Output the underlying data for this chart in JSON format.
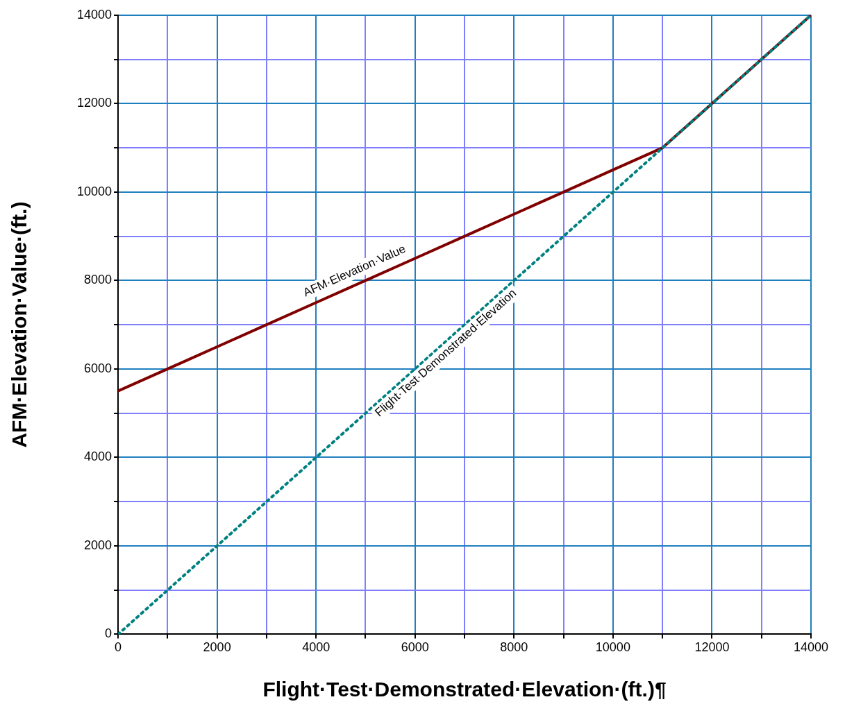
{
  "chart_data": {
    "type": "line",
    "xlabel": "Flight·Test·Demonstrated·Elevation·(ft.)¶",
    "ylabel": "AFM·Elevation·Value·(ft.)",
    "x": [
      0,
      1000,
      2000,
      3000,
      4000,
      5000,
      6000,
      7000,
      8000,
      9000,
      10000,
      11000,
      12000,
      13000,
      14000
    ],
    "series": [
      {
        "name": "AFM·Elevation·Value",
        "color": "#800000",
        "line_style": "solid",
        "values": [
          5500,
          6000,
          6500,
          7000,
          7500,
          8000,
          8500,
          9000,
          9500,
          10000,
          10500,
          11000,
          12000,
          13000,
          14000
        ]
      },
      {
        "name": "Flight·Test·Demonstrated·Elevation",
        "color": "#008080",
        "line_style": "dotted",
        "values": [
          0,
          1000,
          2000,
          3000,
          4000,
          5000,
          6000,
          7000,
          8000,
          9000,
          10000,
          11000,
          12000,
          13000,
          14000
        ]
      }
    ],
    "xlim": [
      0,
      14000
    ],
    "ylim": [
      0,
      14000
    ],
    "xticks": [
      0,
      {
        "value": 1000,
        "label": null
      },
      2000,
      {
        "value": 3000,
        "label": null
      },
      4000,
      {
        "value": 5000,
        "label": null
      },
      6000,
      {
        "value": 7000,
        "label": null
      },
      8000,
      {
        "value": 9000,
        "label": null
      },
      10000,
      {
        "value": 11000,
        "label": null
      },
      12000,
      {
        "value": 13000,
        "label": null
      },
      14000
    ],
    "yticks": [
      0,
      {
        "value": 1000,
        "label": null
      },
      2000,
      {
        "value": 3000,
        "label": null
      },
      4000,
      {
        "value": 5000,
        "label": null
      },
      6000,
      {
        "value": 7000,
        "label": null
      },
      8000,
      {
        "value": 9000,
        "label": null
      },
      10000,
      {
        "value": 11000,
        "label": null
      },
      12000,
      {
        "value": 13000,
        "label": null
      },
      14000
    ],
    "grid": true,
    "legend": false,
    "marker": "none"
  }
}
